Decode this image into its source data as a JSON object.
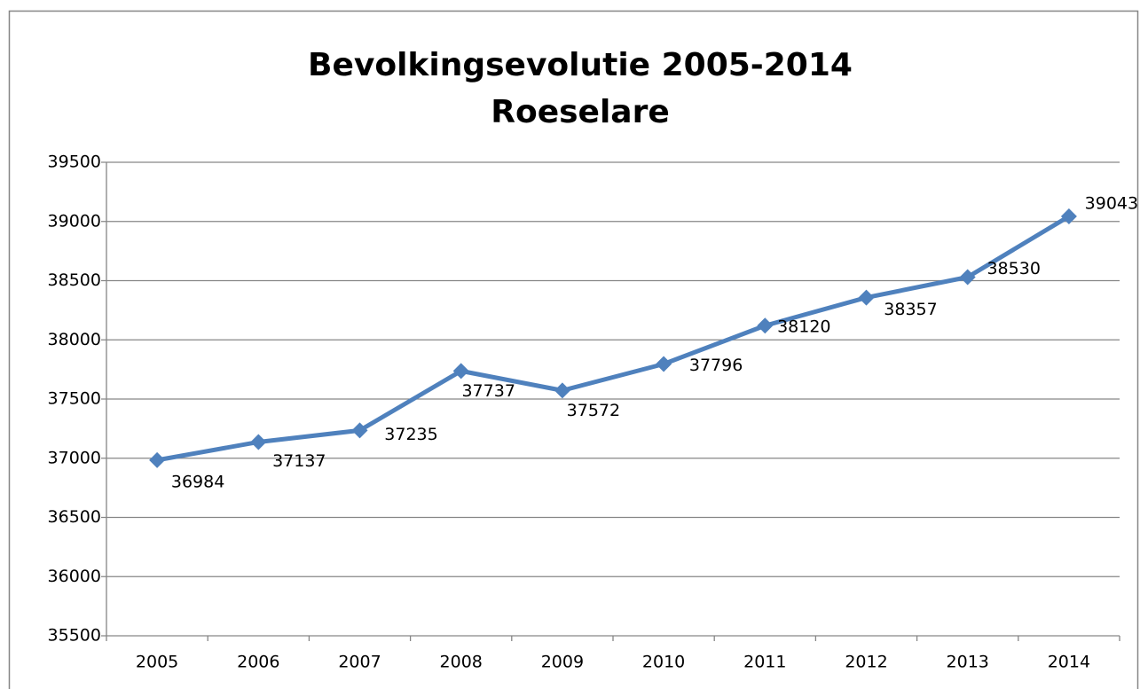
{
  "chart_data": {
    "type": "line",
    "title": "Bevolkingsevolutie 2005-2014",
    "subtitle": "Roeselare",
    "categories": [
      "2005",
      "2006",
      "2007",
      "2008",
      "2009",
      "2010",
      "2011",
      "2012",
      "2013",
      "2014"
    ],
    "series": [
      {
        "name": "Roeselare",
        "color": "#4f81bd",
        "values": [
          36984,
          37137,
          37235,
          37737,
          37572,
          37796,
          38120,
          38357,
          38530,
          39043
        ]
      }
    ],
    "ylim": [
      35500,
      39500
    ],
    "yticks": [
      35500,
      36000,
      36500,
      37000,
      37500,
      38000,
      38500,
      39000,
      39500
    ],
    "grid": true
  }
}
